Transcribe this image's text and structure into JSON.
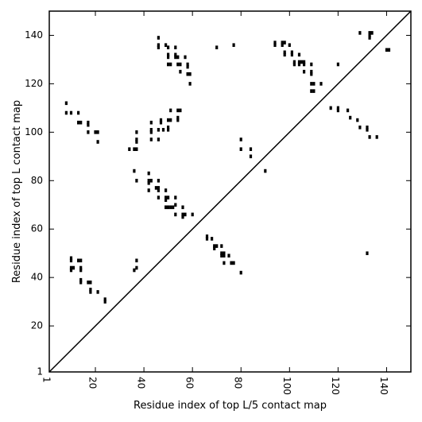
{
  "chart_data": {
    "type": "scatter",
    "xlabel": "Residue index of top L/5 contact map",
    "ylabel": "Residue index of top L contact map",
    "xlim": [
      1,
      150
    ],
    "ylim": [
      1,
      150
    ],
    "xticks": [
      {
        "value": 1,
        "label": "1"
      },
      {
        "value": 20,
        "label": "20"
      },
      {
        "value": 40,
        "label": "40"
      },
      {
        "value": 60,
        "label": "60"
      },
      {
        "value": 80,
        "label": "80"
      },
      {
        "value": 100,
        "label": "100"
      },
      {
        "value": 120,
        "label": "120"
      },
      {
        "value": 140,
        "label": "140"
      }
    ],
    "yticks": [
      {
        "value": 1,
        "label": "1"
      },
      {
        "value": 20,
        "label": "20"
      },
      {
        "value": 40,
        "label": "40"
      },
      {
        "value": 60,
        "label": "60"
      },
      {
        "value": 80,
        "label": "80"
      },
      {
        "value": 100,
        "label": "100"
      },
      {
        "value": 120,
        "label": "120"
      },
      {
        "value": 140,
        "label": "140"
      }
    ],
    "diagonal": true,
    "grid": false,
    "points": [
      [
        46,
        139
      ],
      [
        46,
        136
      ],
      [
        46,
        135
      ],
      [
        49,
        136
      ],
      [
        50,
        135
      ],
      [
        50,
        132
      ],
      [
        50,
        131
      ],
      [
        50,
        128
      ],
      [
        51,
        128
      ],
      [
        53,
        135
      ],
      [
        53,
        132
      ],
      [
        53,
        131
      ],
      [
        54,
        131
      ],
      [
        54,
        128
      ],
      [
        55,
        128
      ],
      [
        55,
        125
      ],
      [
        57,
        131
      ],
      [
        58,
        128
      ],
      [
        58,
        127
      ],
      [
        58,
        124
      ],
      [
        59,
        124
      ],
      [
        59,
        120
      ],
      [
        70,
        135
      ],
      [
        77,
        136
      ],
      [
        94,
        137
      ],
      [
        94,
        136
      ],
      [
        97,
        137
      ],
      [
        97,
        136
      ],
      [
        98,
        137
      ],
      [
        98,
        133
      ],
      [
        98,
        132
      ],
      [
        100,
        136
      ],
      [
        101,
        133
      ],
      [
        101,
        132
      ],
      [
        102,
        129
      ],
      [
        102,
        128
      ],
      [
        104,
        132
      ],
      [
        104,
        129
      ],
      [
        104,
        128
      ],
      [
        105,
        129
      ],
      [
        106,
        129
      ],
      [
        106,
        128
      ],
      [
        106,
        125
      ],
      [
        109,
        128
      ],
      [
        109,
        125
      ],
      [
        109,
        124
      ],
      [
        109,
        120
      ],
      [
        110,
        120
      ],
      [
        109,
        117
      ],
      [
        110,
        117
      ],
      [
        113,
        120
      ],
      [
        117,
        110
      ],
      [
        120,
        128
      ],
      [
        120,
        110
      ],
      [
        120,
        109
      ],
      [
        124,
        109
      ],
      [
        125,
        106
      ],
      [
        128,
        105
      ],
      [
        129,
        102
      ],
      [
        129,
        141
      ],
      [
        132,
        102
      ],
      [
        132,
        101
      ],
      [
        133,
        141
      ],
      [
        133,
        140
      ],
      [
        133,
        139
      ],
      [
        134,
        141
      ],
      [
        133,
        98
      ],
      [
        136,
        98
      ],
      [
        140,
        134
      ],
      [
        141,
        134
      ],
      [
        8,
        112
      ],
      [
        8,
        108
      ],
      [
        10,
        108
      ],
      [
        13,
        108
      ],
      [
        13,
        104
      ],
      [
        14,
        104
      ],
      [
        17,
        104
      ],
      [
        17,
        103
      ],
      [
        17,
        100
      ],
      [
        20,
        100
      ],
      [
        21,
        100
      ],
      [
        21,
        96
      ],
      [
        34,
        93
      ],
      [
        36,
        93
      ],
      [
        37,
        93
      ],
      [
        37,
        97
      ],
      [
        37,
        96
      ],
      [
        37,
        100
      ],
      [
        43,
        104
      ],
      [
        43,
        101
      ],
      [
        43,
        100
      ],
      [
        43,
        97
      ],
      [
        46,
        101
      ],
      [
        47,
        105
      ],
      [
        47,
        104
      ],
      [
        48,
        101
      ],
      [
        50,
        105
      ],
      [
        51,
        105
      ],
      [
        50,
        102
      ],
      [
        50,
        101
      ],
      [
        51,
        109
      ],
      [
        54,
        109
      ],
      [
        55,
        109
      ],
      [
        54,
        106
      ],
      [
        54,
        105
      ],
      [
        46,
        97
      ],
      [
        36,
        84
      ],
      [
        37,
        80
      ],
      [
        42,
        83
      ],
      [
        42,
        80
      ],
      [
        43,
        80
      ],
      [
        42,
        79
      ],
      [
        42,
        76
      ],
      [
        45,
        77
      ],
      [
        46,
        80
      ],
      [
        46,
        77
      ],
      [
        46,
        76
      ],
      [
        46,
        73
      ],
      [
        49,
        76
      ],
      [
        49,
        73
      ],
      [
        49,
        72
      ],
      [
        50,
        73
      ],
      [
        50,
        69
      ],
      [
        49,
        69
      ],
      [
        51,
        69
      ],
      [
        53,
        73
      ],
      [
        52,
        69
      ],
      [
        53,
        70
      ],
      [
        53,
        66
      ],
      [
        56,
        69
      ],
      [
        56,
        66
      ],
      [
        56,
        65
      ],
      [
        57,
        66
      ],
      [
        60,
        66
      ],
      [
        66,
        57
      ],
      [
        66,
        56
      ],
      [
        68,
        56
      ],
      [
        69,
        53
      ],
      [
        69,
        52
      ],
      [
        70,
        53
      ],
      [
        72,
        53
      ],
      [
        72,
        50
      ],
      [
        72,
        49
      ],
      [
        73,
        50
      ],
      [
        73,
        49
      ],
      [
        73,
        46
      ],
      [
        75,
        49
      ],
      [
        76,
        46
      ],
      [
        77,
        46
      ],
      [
        80,
        42
      ],
      [
        80,
        97
      ],
      [
        80,
        93
      ],
      [
        84,
        93
      ],
      [
        84,
        90
      ],
      [
        90,
        84
      ],
      [
        132,
        50
      ],
      [
        10,
        48
      ],
      [
        10,
        47
      ],
      [
        10,
        44
      ],
      [
        10,
        43
      ],
      [
        11,
        44
      ],
      [
        13,
        47
      ],
      [
        14,
        47
      ],
      [
        14,
        44
      ],
      [
        14,
        43
      ],
      [
        14,
        39
      ],
      [
        14,
        38
      ],
      [
        17,
        38
      ],
      [
        18,
        38
      ],
      [
        18,
        35
      ],
      [
        18,
        34
      ],
      [
        21,
        34
      ],
      [
        24,
        31
      ],
      [
        24,
        30
      ],
      [
        37,
        47
      ],
      [
        37,
        44
      ],
      [
        36,
        43
      ]
    ]
  }
}
